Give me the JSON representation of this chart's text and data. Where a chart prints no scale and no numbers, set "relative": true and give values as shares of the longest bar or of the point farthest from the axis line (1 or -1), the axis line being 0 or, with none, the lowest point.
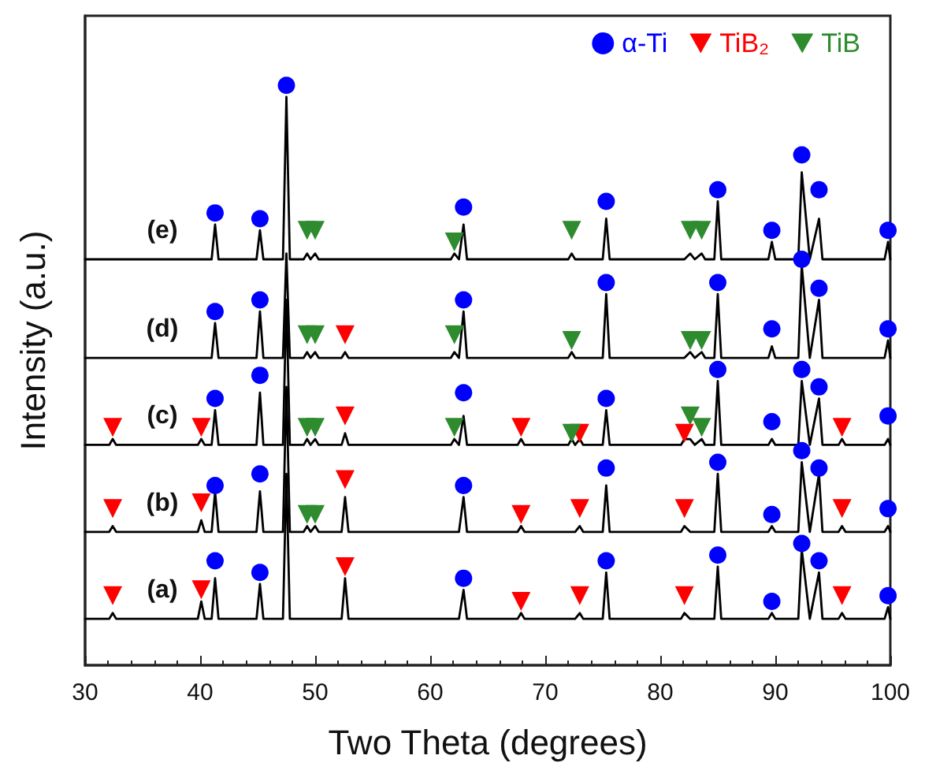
{
  "chart_data": {
    "type": "line",
    "relative": true,
    "xlabel": "Two Theta (degrees)",
    "ylabel": "Intensity (a.u.)",
    "xlim": [
      30,
      100
    ],
    "xticks": [
      30,
      40,
      50,
      60,
      70,
      80,
      90,
      100
    ],
    "tick_labels": "x",
    "grid": false,
    "legend": "top right",
    "marker": "none",
    "x": [
      30,
      32.1,
      32.4,
      32.7,
      39.8,
      40.1,
      40.4,
      41.0,
      41.3,
      41.6,
      44.9,
      45.2,
      45.5,
      47.2,
      47.5,
      47.8,
      49.0,
      49.3,
      49.6,
      50.0,
      50.3,
      52.3,
      52.6,
      52.9,
      61.8,
      62.1,
      62.5,
      62.9,
      63.2,
      67.6,
      67.9,
      68.2,
      72.0,
      72.3,
      72.6,
      73.0,
      73.3,
      75.0,
      75.3,
      75.6,
      81.8,
      82.1,
      82.6,
      83.0,
      83.6,
      83.9,
      84.7,
      85.0,
      85.3,
      89.4,
      89.7,
      90.0,
      92.0,
      92.3,
      93.0,
      93.8,
      94.1,
      95.5,
      95.8,
      96.1,
      99.5,
      99.8,
      100
    ],
    "series": [
      {
        "color": "#000000",
        "values": [
          0.08,
          0.08,
          0.09,
          0.08,
          0.08,
          0.11,
          0.08,
          0.08,
          0.15,
          0.08,
          0.08,
          0.14,
          0.08,
          0.08,
          0.33,
          0.08,
          0.08,
          0.08,
          0.08,
          0.08,
          0.08,
          0.08,
          0.15,
          0.08,
          0.08,
          0.08,
          0.08,
          0.13,
          0.08,
          0.08,
          0.09,
          0.08,
          0.08,
          0.08,
          0.08,
          0.09,
          0.08,
          0.08,
          0.16,
          0.08,
          0.08,
          0.09,
          0.08,
          0.08,
          0.08,
          0.08,
          0.08,
          0.17,
          0.08,
          0.08,
          0.09,
          0.08,
          0.08,
          0.2,
          0.08,
          0.16,
          0.08,
          0.08,
          0.09,
          0.08,
          0.08,
          0.1,
          0.08
        ]
      },
      {
        "color": "#000000",
        "values": [
          0.23,
          0.23,
          0.24,
          0.23,
          0.23,
          0.25,
          0.23,
          0.23,
          0.3,
          0.23,
          0.23,
          0.3,
          0.23,
          0.23,
          0.48,
          0.23,
          0.23,
          0.24,
          0.23,
          0.24,
          0.23,
          0.23,
          0.29,
          0.23,
          0.23,
          0.23,
          0.23,
          0.29,
          0.23,
          0.23,
          0.24,
          0.23,
          0.23,
          0.23,
          0.23,
          0.24,
          0.23,
          0.23,
          0.31,
          0.23,
          0.23,
          0.24,
          0.23,
          0.23,
          0.23,
          0.23,
          0.23,
          0.33,
          0.23,
          0.23,
          0.24,
          0.23,
          0.23,
          0.35,
          0.23,
          0.33,
          0.23,
          0.23,
          0.24,
          0.23,
          0.23,
          0.24,
          0.23
        ]
      },
      {
        "color": "#000000",
        "values": [
          0.38,
          0.38,
          0.39,
          0.38,
          0.38,
          0.39,
          0.38,
          0.38,
          0.44,
          0.38,
          0.38,
          0.47,
          0.38,
          0.38,
          0.63,
          0.38,
          0.38,
          0.39,
          0.38,
          0.39,
          0.38,
          0.38,
          0.4,
          0.38,
          0.38,
          0.39,
          0.38,
          0.43,
          0.38,
          0.38,
          0.39,
          0.38,
          0.38,
          0.39,
          0.38,
          0.39,
          0.38,
          0.38,
          0.44,
          0.38,
          0.38,
          0.39,
          0.39,
          0.38,
          0.39,
          0.38,
          0.38,
          0.49,
          0.38,
          0.38,
          0.39,
          0.38,
          0.38,
          0.49,
          0.38,
          0.46,
          0.38,
          0.38,
          0.39,
          0.38,
          0.38,
          0.39,
          0.38
        ]
      },
      {
        "color": "#000000",
        "values": [
          0.53,
          0.53,
          0.53,
          0.53,
          0.53,
          0.53,
          0.53,
          0.53,
          0.59,
          0.53,
          0.53,
          0.61,
          0.53,
          0.53,
          0.71,
          0.53,
          0.53,
          0.54,
          0.53,
          0.54,
          0.53,
          0.53,
          0.54,
          0.53,
          0.53,
          0.54,
          0.53,
          0.61,
          0.53,
          0.53,
          0.53,
          0.53,
          0.53,
          0.54,
          0.53,
          0.53,
          0.53,
          0.53,
          0.64,
          0.53,
          0.53,
          0.53,
          0.54,
          0.53,
          0.54,
          0.53,
          0.53,
          0.64,
          0.53,
          0.53,
          0.55,
          0.53,
          0.53,
          0.69,
          0.53,
          0.63,
          0.53,
          0.53,
          0.53,
          0.53,
          0.53,
          0.56,
          0.53
        ]
      },
      {
        "color": "#000000",
        "values": [
          0.7,
          0.7,
          0.7,
          0.7,
          0.7,
          0.7,
          0.7,
          0.7,
          0.76,
          0.7,
          0.7,
          0.75,
          0.7,
          0.7,
          0.98,
          0.7,
          0.7,
          0.71,
          0.7,
          0.71,
          0.7,
          0.7,
          0.7,
          0.7,
          0.7,
          0.71,
          0.7,
          0.76,
          0.7,
          0.7,
          0.7,
          0.7,
          0.7,
          0.71,
          0.7,
          0.7,
          0.7,
          0.7,
          0.77,
          0.7,
          0.7,
          0.7,
          0.71,
          0.7,
          0.71,
          0.7,
          0.7,
          0.8,
          0.7,
          0.7,
          0.73,
          0.7,
          0.7,
          0.85,
          0.7,
          0.77,
          0.7,
          0.7,
          0.7,
          0.7,
          0.7,
          0.73,
          0.7
        ]
      },
      {
        "type": "scatter",
        "name": "α-Ti",
        "color": "#0000ff",
        "marker": "circle",
        "x": [
          41.3,
          45.2,
          47.5,
          62.9,
          75.3,
          85.0,
          89.7,
          92.3,
          93.8,
          99.8,
          41.3,
          45.2,
          62.9,
          75.3,
          85.0,
          89.7,
          92.3,
          93.8,
          99.8,
          41.3,
          45.2,
          62.9,
          75.3,
          85.0,
          89.7,
          92.3,
          93.8,
          99.8,
          41.3,
          45.2,
          62.9,
          75.3,
          85.0,
          89.7,
          92.3,
          93.8,
          99.8,
          41.3,
          45.2,
          62.9,
          75.3,
          85.0,
          89.7,
          92.3,
          93.8,
          99.8
        ],
        "values": [
          0.78,
          0.77,
          1,
          0.79,
          0.8,
          0.82,
          0.75,
          0.88,
          0.82,
          0.75,
          0.61,
          0.63,
          0.63,
          0.66,
          0.66,
          0.58,
          0.7,
          0.65,
          0.58,
          0.46,
          0.5,
          0.47,
          0.46,
          0.51,
          0.42,
          0.51,
          0.48,
          0.43,
          0.31,
          0.33,
          0.31,
          0.34,
          0.35,
          0.26,
          0.37,
          0.34,
          0.27,
          0.18,
          0.16,
          0.15,
          0.18,
          0.19,
          0.11,
          0.21,
          0.18,
          0.12
        ]
      },
      {
        "type": "scatter",
        "name": "TiB₂",
        "color": "#ff0000",
        "marker": "triangle",
        "x": [
          52.6,
          32.4,
          40.1,
          52.6,
          67.9,
          73.0,
          82.1,
          95.8,
          32.4,
          40.1,
          52.6,
          67.9,
          73.0,
          82.1,
          95.8,
          32.4,
          40.1,
          52.6,
          67.9,
          73.0,
          82.1,
          95.8
        ],
        "values": [
          0.57,
          0.41,
          0.41,
          0.43,
          0.41,
          0.4,
          0.4,
          0.41,
          0.27,
          0.28,
          0.32,
          0.26,
          0.27,
          0.27,
          0.27,
          0.12,
          0.13,
          0.17,
          0.11,
          0.12,
          0.12,
          0.12
        ]
      },
      {
        "type": "scatter",
        "name": "TiB",
        "color": "#2e8b2e",
        "marker": "triangle",
        "x": [
          49.3,
          50.0,
          62.1,
          72.3,
          82.6,
          83.6,
          49.3,
          50.0,
          62.1,
          72.3,
          82.6,
          83.6,
          49.3,
          50.0,
          62.1,
          72.3,
          82.6,
          83.6,
          49.3,
          50.0
        ],
        "values": [
          0.75,
          0.75,
          0.73,
          0.75,
          0.75,
          0.75,
          0.57,
          0.57,
          0.57,
          0.56,
          0.56,
          0.56,
          0.41,
          0.41,
          0.41,
          0.4,
          0.43,
          0.41,
          0.26,
          0.26
        ]
      }
    ],
    "annotations": [
      "(a)",
      "(b)",
      "(c)",
      "(d)",
      "(e)"
    ]
  }
}
